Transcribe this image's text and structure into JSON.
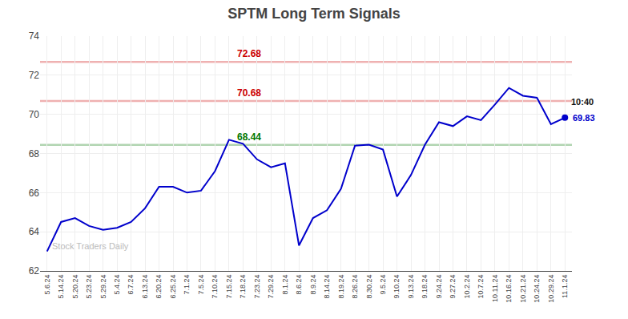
{
  "chart_data": {
    "type": "line",
    "title": "SPTM Long Term Signals",
    "categories": [
      "5.6.24",
      "5.14.24",
      "5.20.24",
      "5.23.24",
      "5.29.24",
      "5.4.24",
      "6.7.24",
      "6.13.24",
      "6.20.24",
      "6.25.24",
      "7.1.24",
      "7.5.24",
      "7.10.24",
      "7.15.24",
      "7.18.24",
      "7.23.24",
      "7.29.24",
      "8.1.24",
      "8.6.24",
      "8.9.24",
      "8.14.24",
      "8.19.24",
      "8.26.24",
      "8.30.24",
      "9.5.24",
      "9.10.24",
      "9.13.24",
      "9.18.24",
      "9.24.24",
      "9.27.24",
      "10.2.24",
      "10.7.24",
      "10.11.24",
      "10.16.24",
      "10.21.24",
      "10.24.24",
      "10.29.24",
      "11.1.24"
    ],
    "values": [
      63.0,
      64.5,
      64.7,
      64.3,
      64.1,
      64.2,
      64.5,
      65.2,
      66.3,
      66.3,
      66.0,
      66.1,
      67.1,
      68.7,
      68.5,
      67.7,
      67.3,
      67.5,
      63.3,
      64.7,
      65.1,
      66.2,
      68.4,
      68.45,
      68.2,
      65.8,
      66.9,
      68.45,
      69.6,
      69.4,
      69.9,
      69.7,
      70.5,
      71.35,
      70.95,
      70.85,
      69.5,
      69.83
    ],
    "color": "#0000cc",
    "ylim": [
      62,
      74
    ],
    "yticks": [
      62,
      64,
      66,
      68,
      70,
      72,
      74
    ],
    "grid": true,
    "reference_lines": [
      {
        "value": 72.68,
        "label": "72.68",
        "color": "#cc0000"
      },
      {
        "value": 70.68,
        "label": "70.68",
        "color": "#cc0000"
      },
      {
        "value": 68.44,
        "label": "68.44",
        "color": "#007700"
      }
    ],
    "annotations": [
      {
        "text": "Stock Traders Daily"
      },
      {
        "text": "10:40",
        "x": "11.1.24"
      },
      {
        "text": "69.83",
        "x": "11.1.24",
        "y": 69.83,
        "color": "#0000cc"
      }
    ]
  }
}
